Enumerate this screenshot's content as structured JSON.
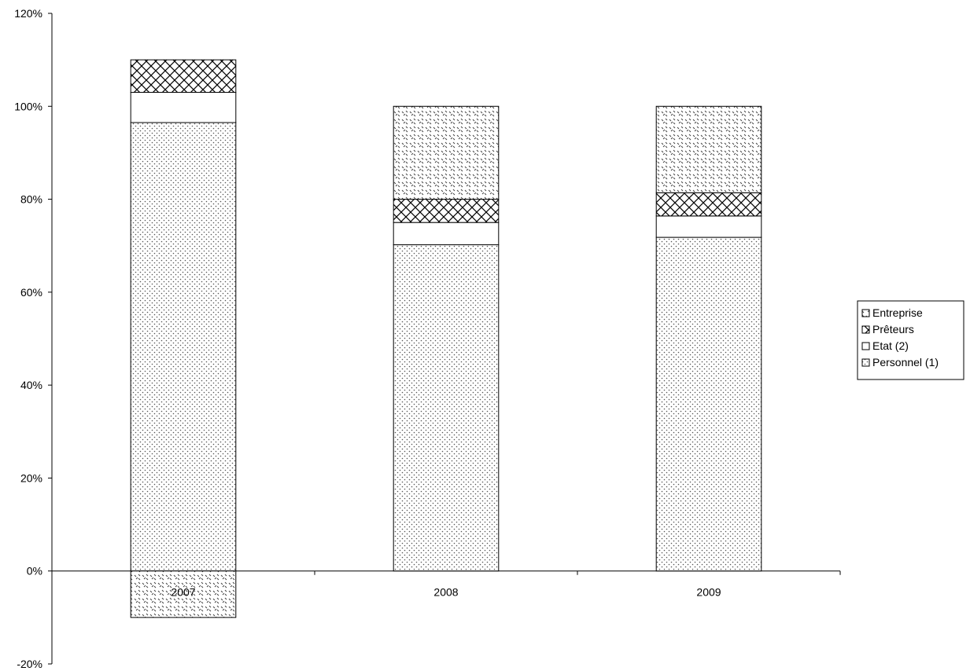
{
  "chart_data": {
    "type": "bar",
    "stacked": true,
    "categories": [
      "2007",
      "2008",
      "2009"
    ],
    "series": [
      {
        "name": "Personnel (1)",
        "values": [
          96.5,
          70.2,
          71.8
        ],
        "pattern": "dots"
      },
      {
        "name": "Etat (2)",
        "values": [
          6.5,
          4.8,
          4.6
        ],
        "pattern": "none"
      },
      {
        "name": "Prêteurs",
        "values": [
          7.0,
          5.0,
          5.0
        ],
        "pattern": "crosshatch"
      },
      {
        "name": "Entreprise",
        "values": [
          -10.0,
          20.0,
          18.6
        ],
        "pattern": "dashes"
      }
    ],
    "ylim": [
      -20,
      120
    ],
    "yticks": [
      -20,
      0,
      20,
      40,
      60,
      80,
      100,
      120
    ],
    "ytick_labels": [
      "-20%",
      "0%",
      "20%",
      "40%",
      "60%",
      "80%",
      "100%",
      "120%"
    ],
    "xlabel": "",
    "ylabel": "",
    "title": "",
    "legend": {
      "placement": "right",
      "entries": [
        "Entreprise",
        "Prêteurs",
        "Etat (2)",
        "Personnel (1)"
      ]
    },
    "grid": false
  }
}
